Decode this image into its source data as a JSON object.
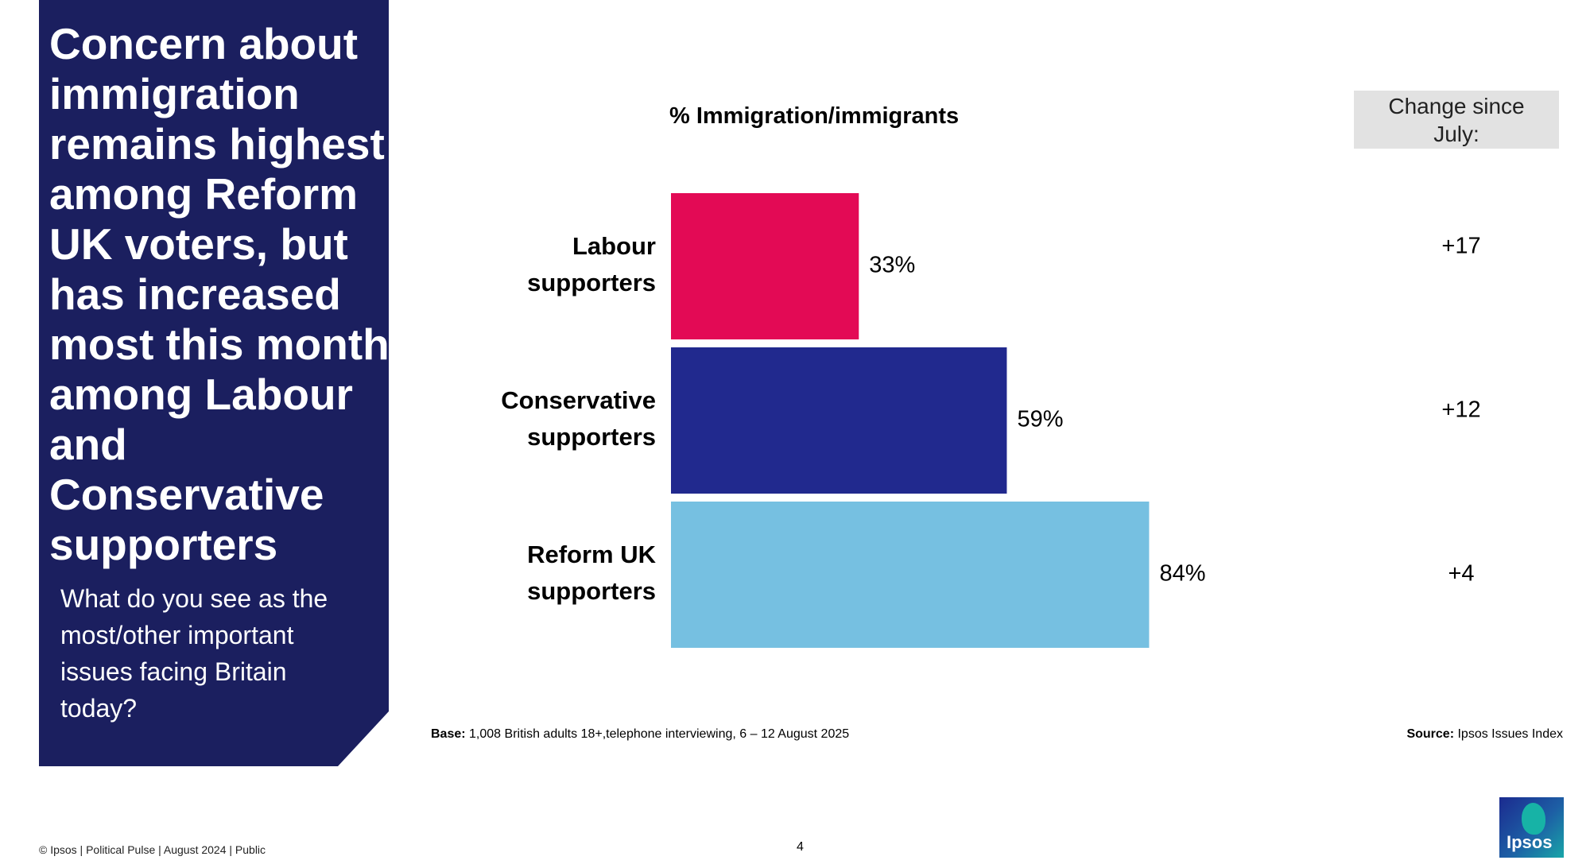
{
  "slide": {
    "headline": "Concern about immigration remains highest among Reform UK voters, but has increased most this month among Labour and Conservative supporters",
    "question": "What do you see as the most/other important issues facing Britain today?",
    "change_header": "Change since July:",
    "base_label": "Base:",
    "base_text": "1,008 British adults 18+,telephone interviewing, 6 – 12 August 2025",
    "source_label": "Source:",
    "source_text": "Ipsos Issues Index",
    "footer": "© Ipsos | Political Pulse | August 2024 | Public",
    "page_number": "4",
    "logo_text": "Ipsos"
  },
  "chart_data": {
    "type": "bar",
    "orientation": "horizontal",
    "title": "% Immigration/immigrants",
    "categories": [
      "Labour supporters",
      "Conservative supporters",
      "Reform UK supporters"
    ],
    "category_lines": [
      [
        "Labour",
        "supporters"
      ],
      [
        "Conservative",
        "supporters"
      ],
      [
        "Reform UK",
        "supporters"
      ]
    ],
    "values": [
      33,
      59,
      84
    ],
    "value_labels": [
      "33%",
      "59%",
      "84%"
    ],
    "change_since_july": [
      "+17",
      "+12",
      "+4"
    ],
    "colors": [
      "#e30a55",
      "#21298e",
      "#76c0e1"
    ],
    "xlim": [
      0,
      100
    ],
    "grid": false,
    "legend": "none"
  }
}
